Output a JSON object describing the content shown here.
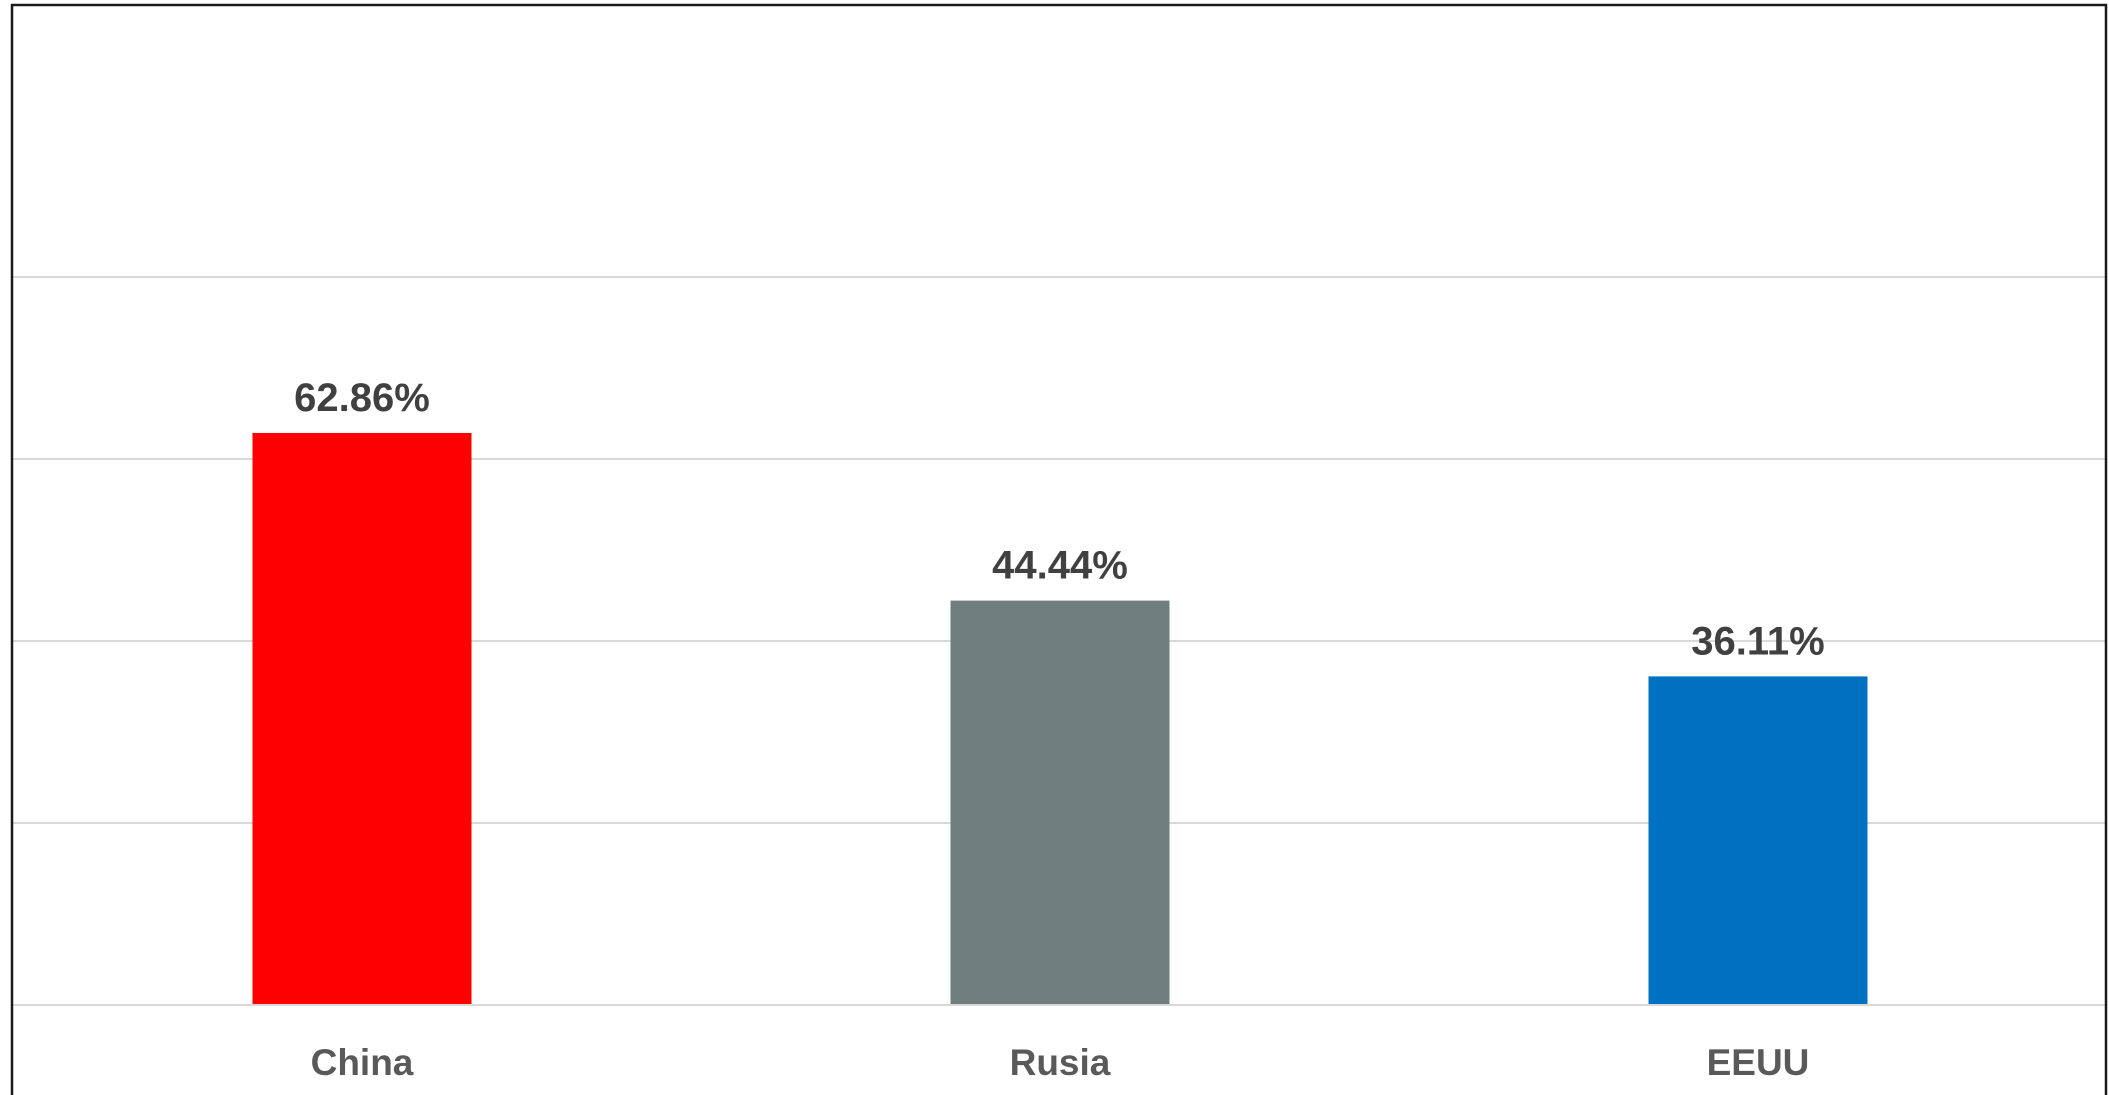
{
  "chart_data": {
    "type": "bar",
    "categories": [
      "China",
      "Rusia",
      "EEUU"
    ],
    "values": [
      62.86,
      44.44,
      36.11
    ],
    "data_labels": [
      "62.86%",
      "44.44%",
      "36.11%"
    ],
    "colors": [
      "#ff0000",
      "#717e7e",
      "#0070c0"
    ],
    "title": "",
    "xlabel": "",
    "ylabel": "",
    "ylim": [
      0,
      100
    ],
    "gridlines": [
      20,
      40,
      60,
      80
    ],
    "grid": true,
    "legend": "none"
  }
}
